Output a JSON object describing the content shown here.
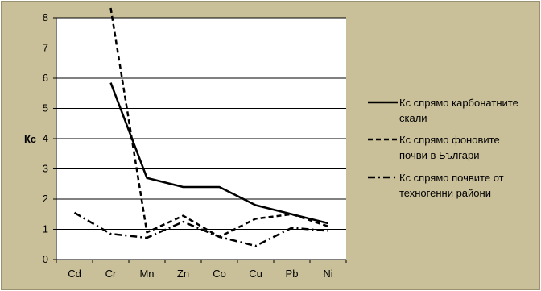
{
  "chart_data": {
    "type": "line",
    "title": "",
    "xlabel": "",
    "ylabel": "Кс",
    "categories": [
      "Cd",
      "Cr",
      "Mn",
      "Zn",
      "Co",
      "Cu",
      "Pb",
      "Ni"
    ],
    "ylim": [
      0,
      8
    ],
    "yticks": [
      0,
      1,
      2,
      3,
      4,
      5,
      6,
      7,
      8
    ],
    "grid": true,
    "legend_position": "right",
    "series": [
      {
        "name": "Кс спрямо карбонатните скали",
        "style": "solid",
        "values": [
          null,
          5.85,
          2.7,
          2.4,
          2.4,
          1.8,
          1.5,
          1.2
        ]
      },
      {
        "name": "Кс спрямо фоновите почви в Българи",
        "style": "dashed",
        "values": [
          null,
          8.0,
          0.9,
          1.45,
          0.75,
          1.35,
          1.5,
          1.1
        ],
        "note_first_value_exceeds_axis": true
      },
      {
        "name": "Кс спрямо почвите от техногенни райони",
        "style": "dashdot",
        "values": [
          1.55,
          0.85,
          0.72,
          1.25,
          0.75,
          0.45,
          1.05,
          0.95
        ]
      }
    ],
    "legend_lines": [
      [
        "Кс спрямо карбонатните",
        "скали"
      ],
      [
        "Кс спрямо фоновите",
        "почви в Българи"
      ],
      [
        "Кс спрямо почвите от",
        "техногенни райони"
      ]
    ]
  },
  "colors": {
    "background": "#c9bf98",
    "plot_area": "#ffffff",
    "grid": "#000000",
    "line": "#000000"
  }
}
